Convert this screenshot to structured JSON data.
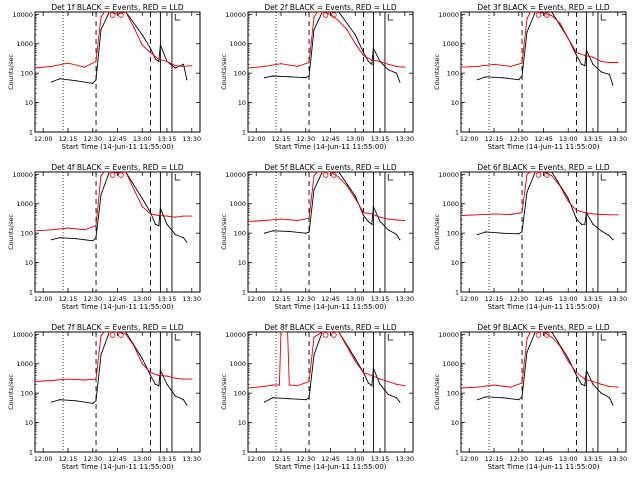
{
  "window": {
    "title": ""
  },
  "colors": {
    "events": "#000000",
    "lld": "#e00000",
    "axes": "#000000",
    "background": "#ffffff"
  },
  "common": {
    "xlabel": "Start Time (14-Jun-11 11:55:00)",
    "ylabel": "Counts/sec",
    "xticks": [
      "12:00",
      "12:15",
      "12:30",
      "12:45",
      "13:00",
      "13:15",
      "13:30"
    ],
    "yticks": [
      "1",
      "10",
      "100",
      "1000",
      "10000"
    ]
  },
  "chart_data": [
    {
      "type": "line",
      "title": "Det 1f BLACK = Events, RED = LLD",
      "xlim": [
        "11:55",
        "13:35"
      ],
      "ylim": [
        1,
        12000
      ],
      "yscale": "log",
      "vlines_dotted": [
        "12:12"
      ],
      "vlines_dashed": [
        "12:32",
        "13:05"
      ],
      "vlines_solid": [
        "13:11",
        "13:18"
      ],
      "series": [
        {
          "name": "Events",
          "color": "#000000",
          "x": [
            "12:05",
            "12:10",
            "12:20",
            "12:30",
            "12:32",
            "12:35",
            "12:40",
            "12:50",
            "13:00",
            "13:05",
            "13:08",
            "13:10",
            "13:11",
            "13:15",
            "13:20",
            "13:25",
            "13:27"
          ],
          "y": [
            50,
            65,
            55,
            45,
            60,
            3000,
            12000,
            12000,
            2000,
            700,
            300,
            250,
            900,
            250,
            150,
            200,
            60
          ]
        },
        {
          "name": "LLD",
          "color": "#e00000",
          "x": [
            "11:55",
            "12:05",
            "12:15",
            "12:25",
            "12:32",
            "12:35",
            "12:37",
            "12:40",
            "12:45",
            "12:50",
            "12:55",
            "13:00",
            "13:05",
            "13:10",
            "13:15",
            "13:20",
            "13:25",
            "13:30"
          ],
          "y": [
            150,
            170,
            220,
            160,
            250,
            8000,
            12000,
            12000,
            10000,
            12000,
            3500,
            900,
            500,
            300,
            250,
            180,
            170,
            180
          ]
        }
      ]
    },
    {
      "type": "line",
      "title": "Det 2f BLACK = Events, RED = LLD",
      "xlim": [
        "11:55",
        "13:35"
      ],
      "ylim": [
        1,
        12000
      ],
      "yscale": "log",
      "vlines_dotted": [
        "12:12"
      ],
      "vlines_dashed": [
        "12:32",
        "13:05"
      ],
      "vlines_solid": [
        "13:11",
        "13:18"
      ],
      "series": [
        {
          "name": "Events",
          "color": "#000000",
          "x": [
            "12:05",
            "12:10",
            "12:20",
            "12:30",
            "12:32",
            "12:35",
            "12:40",
            "12:50",
            "13:00",
            "13:05",
            "13:08",
            "13:10",
            "13:11",
            "13:15",
            "13:20",
            "13:25",
            "13:27"
          ],
          "y": [
            70,
            80,
            75,
            70,
            80,
            3000,
            12000,
            12000,
            2000,
            500,
            250,
            200,
            700,
            250,
            130,
            100,
            50
          ]
        },
        {
          "name": "LLD",
          "color": "#e00000",
          "x": [
            "11:55",
            "12:05",
            "12:15",
            "12:25",
            "12:32",
            "12:35",
            "12:37",
            "12:40",
            "12:45",
            "12:50",
            "12:55",
            "13:00",
            "13:05",
            "13:10",
            "13:15",
            "13:20",
            "13:25",
            "13:30"
          ],
          "y": [
            150,
            170,
            210,
            170,
            230,
            8000,
            12000,
            12000,
            10000,
            6000,
            3000,
            1000,
            400,
            280,
            250,
            200,
            170,
            160
          ]
        }
      ]
    },
    {
      "type": "line",
      "title": "Det 3f BLACK = Events, RED = LLD",
      "xlim": [
        "11:55",
        "13:35"
      ],
      "ylim": [
        1,
        12000
      ],
      "yscale": "log",
      "vlines_dotted": [
        "12:12"
      ],
      "vlines_dashed": [
        "12:32",
        "13:05"
      ],
      "vlines_solid": [
        "13:11",
        "13:18"
      ],
      "series": [
        {
          "name": "Events",
          "color": "#000000",
          "x": [
            "12:05",
            "12:10",
            "12:20",
            "12:30",
            "12:32",
            "12:35",
            "12:40",
            "12:50",
            "13:00",
            "13:05",
            "13:08",
            "13:10",
            "13:11",
            "13:15",
            "13:20",
            "13:25",
            "13:27"
          ],
          "y": [
            60,
            75,
            70,
            60,
            80,
            2500,
            12000,
            12000,
            1500,
            400,
            200,
            180,
            600,
            200,
            110,
            90,
            40
          ]
        },
        {
          "name": "LLD",
          "color": "#e00000",
          "x": [
            "11:55",
            "12:05",
            "12:15",
            "12:25",
            "12:32",
            "12:35",
            "12:37",
            "12:40",
            "12:45",
            "12:50",
            "12:55",
            "13:00",
            "13:05",
            "13:10",
            "13:15",
            "13:20",
            "13:25",
            "13:30"
          ],
          "y": [
            160,
            170,
            200,
            170,
            220,
            7000,
            12000,
            12000,
            11000,
            9000,
            5000,
            1500,
            500,
            400,
            350,
            250,
            230,
            230
          ]
        }
      ]
    },
    {
      "type": "line",
      "title": "Det 4f BLACK = Events, RED = LLD",
      "xlim": [
        "11:55",
        "13:35"
      ],
      "ylim": [
        1,
        12000
      ],
      "yscale": "log",
      "vlines_dotted": [
        "12:12"
      ],
      "vlines_dashed": [
        "12:32",
        "13:05"
      ],
      "vlines_solid": [
        "13:11",
        "13:18"
      ],
      "series": [
        {
          "name": "Events",
          "color": "#000000",
          "x": [
            "12:05",
            "12:10",
            "12:20",
            "12:30",
            "12:32",
            "12:35",
            "12:40",
            "12:50",
            "13:00",
            "13:05",
            "13:08",
            "13:10",
            "13:11",
            "13:15",
            "13:20",
            "13:25",
            "13:27"
          ],
          "y": [
            60,
            70,
            65,
            55,
            70,
            2000,
            12000,
            12000,
            1500,
            500,
            200,
            180,
            700,
            200,
            90,
            70,
            50
          ]
        },
        {
          "name": "LLD",
          "color": "#e00000",
          "x": [
            "11:55",
            "12:05",
            "12:15",
            "12:25",
            "12:32",
            "12:35",
            "12:37",
            "12:40",
            "12:45",
            "12:50",
            "12:55",
            "13:00",
            "13:05",
            "13:10",
            "13:15",
            "13:20",
            "13:25",
            "13:30"
          ],
          "y": [
            120,
            130,
            150,
            130,
            180,
            9000,
            12000,
            12000,
            11000,
            12000,
            3000,
            800,
            450,
            400,
            380,
            350,
            380,
            380
          ]
        }
      ]
    },
    {
      "type": "line",
      "title": "Det 5f BLACK = Events, RED = LLD",
      "xlim": [
        "11:55",
        "13:35"
      ],
      "ylim": [
        1,
        12000
      ],
      "yscale": "log",
      "vlines_dotted": [
        "12:12"
      ],
      "vlines_dashed": [
        "12:32",
        "13:05"
      ],
      "vlines_solid": [
        "13:11",
        "13:18"
      ],
      "series": [
        {
          "name": "Events",
          "color": "#000000",
          "x": [
            "12:05",
            "12:10",
            "12:20",
            "12:30",
            "12:32",
            "12:35",
            "12:40",
            "12:50",
            "13:00",
            "13:05",
            "13:08",
            "13:10",
            "13:11",
            "13:15",
            "13:20",
            "13:25",
            "13:27"
          ],
          "y": [
            100,
            120,
            115,
            100,
            110,
            3000,
            12000,
            12000,
            1800,
            400,
            250,
            200,
            800,
            250,
            130,
            90,
            60
          ]
        },
        {
          "name": "LLD",
          "color": "#e00000",
          "x": [
            "11:55",
            "12:05",
            "12:15",
            "12:25",
            "12:32",
            "12:35",
            "12:37",
            "12:40",
            "12:45",
            "12:50",
            "12:55",
            "13:00",
            "13:05",
            "13:10",
            "13:15",
            "13:20",
            "13:25",
            "13:30"
          ],
          "y": [
            250,
            270,
            300,
            270,
            320,
            9000,
            12000,
            12000,
            12000,
            8000,
            4000,
            1500,
            500,
            450,
            350,
            300,
            280,
            270
          ]
        }
      ]
    },
    {
      "type": "line",
      "title": "Det 6f BLACK = Events, RED = LLD",
      "xlim": [
        "11:55",
        "13:35"
      ],
      "ylim": [
        1,
        12000
      ],
      "yscale": "log",
      "vlines_dotted": [
        "12:12"
      ],
      "vlines_dashed": [
        "12:32",
        "13:05"
      ],
      "vlines_solid": [
        "13:11",
        "13:18"
      ],
      "series": [
        {
          "name": "Events",
          "color": "#000000",
          "x": [
            "12:05",
            "12:10",
            "12:20",
            "12:30",
            "12:32",
            "12:35",
            "12:40",
            "12:50",
            "13:00",
            "13:05",
            "13:08",
            "13:10",
            "13:11",
            "13:15",
            "13:20",
            "13:25",
            "13:27"
          ],
          "y": [
            90,
            110,
            100,
            95,
            110,
            2500,
            12000,
            12000,
            1500,
            300,
            200,
            200,
            500,
            200,
            120,
            80,
            60
          ]
        },
        {
          "name": "LLD",
          "color": "#e00000",
          "x": [
            "11:55",
            "12:05",
            "12:15",
            "12:25",
            "12:32",
            "12:35",
            "12:37",
            "12:40",
            "12:45",
            "12:50",
            "12:55",
            "13:00",
            "13:05",
            "13:10",
            "13:15",
            "13:20",
            "13:25",
            "13:30"
          ],
          "y": [
            400,
            420,
            450,
            430,
            500,
            10000,
            12000,
            12000,
            12000,
            9000,
            4000,
            1200,
            600,
            500,
            450,
            430,
            420,
            420
          ]
        }
      ]
    },
    {
      "type": "line",
      "title": "Det 7f BLACK = Events, RED = LLD",
      "xlim": [
        "11:55",
        "13:35"
      ],
      "ylim": [
        1,
        12000
      ],
      "yscale": "log",
      "vlines_dotted": [
        "12:12"
      ],
      "vlines_dashed": [
        "12:32",
        "13:05"
      ],
      "vlines_solid": [
        "13:11",
        "13:18"
      ],
      "series": [
        {
          "name": "Events",
          "color": "#000000",
          "x": [
            "12:05",
            "12:10",
            "12:20",
            "12:30",
            "12:32",
            "12:35",
            "12:40",
            "12:50",
            "13:00",
            "13:05",
            "13:08",
            "13:10",
            "13:11",
            "13:15",
            "13:20",
            "13:25",
            "13:27"
          ],
          "y": [
            50,
            60,
            55,
            45,
            55,
            2000,
            12000,
            12000,
            1500,
            400,
            200,
            180,
            600,
            200,
            80,
            60,
            40
          ]
        },
        {
          "name": "LLD",
          "color": "#e00000",
          "x": [
            "11:55",
            "12:05",
            "12:15",
            "12:25",
            "12:32",
            "12:35",
            "12:37",
            "12:40",
            "12:45",
            "12:50",
            "12:55",
            "13:00",
            "13:05",
            "13:10",
            "13:15",
            "13:20",
            "13:25",
            "13:30"
          ],
          "y": [
            250,
            270,
            300,
            280,
            300,
            9000,
            12000,
            12000,
            12000,
            10000,
            4000,
            1000,
            500,
            400,
            380,
            320,
            300,
            300
          ]
        }
      ]
    },
    {
      "type": "line",
      "title": "Det 8f BLACK = Events, RED = LLD",
      "xlim": [
        "11:55",
        "13:35"
      ],
      "ylim": [
        1,
        12000
      ],
      "yscale": "log",
      "vlines_dotted": [
        "12:12"
      ],
      "vlines_dashed": [
        "12:32",
        "13:05"
      ],
      "vlines_solid": [
        "13:11",
        "13:18"
      ],
      "series": [
        {
          "name": "Events",
          "color": "#000000",
          "x": [
            "12:05",
            "12:10",
            "12:20",
            "12:30",
            "12:32",
            "12:35",
            "12:40",
            "12:50",
            "13:00",
            "13:05",
            "13:08",
            "13:10",
            "13:11",
            "13:15",
            "13:20",
            "13:25",
            "13:27"
          ],
          "y": [
            50,
            70,
            65,
            60,
            70,
            2000,
            12000,
            12000,
            1500,
            500,
            220,
            180,
            700,
            200,
            90,
            70,
            50
          ]
        },
        {
          "name": "LLD",
          "color": "#e00000",
          "x": [
            "11:55",
            "12:05",
            "12:10",
            "12:14",
            "12:15",
            "12:19",
            "12:20",
            "12:25",
            "12:32",
            "12:35",
            "12:40",
            "12:50",
            "13:00",
            "13:05",
            "13:10",
            "13:15",
            "13:20",
            "13:25",
            "13:30"
          ],
          "y": [
            150,
            170,
            190,
            190,
            12000,
            12000,
            190,
            180,
            250,
            8000,
            12000,
            12000,
            1200,
            500,
            400,
            300,
            250,
            200,
            180
          ]
        }
      ]
    },
    {
      "type": "line",
      "title": "Det 9f BLACK = Events, RED = LLD",
      "xlim": [
        "11:55",
        "13:35"
      ],
      "ylim": [
        1,
        12000
      ],
      "yscale": "log",
      "vlines_dotted": [
        "12:12"
      ],
      "vlines_dashed": [
        "12:32",
        "13:05"
      ],
      "vlines_solid": [
        "13:11",
        "13:18"
      ],
      "series": [
        {
          "name": "Events",
          "color": "#000000",
          "x": [
            "12:05",
            "12:10",
            "12:20",
            "12:30",
            "12:32",
            "12:35",
            "12:40",
            "12:50",
            "13:00",
            "13:05",
            "13:08",
            "13:10",
            "13:11",
            "13:15",
            "13:20",
            "13:25",
            "13:27"
          ],
          "y": [
            60,
            75,
            70,
            60,
            75,
            2500,
            12000,
            12000,
            1500,
            400,
            200,
            180,
            600,
            200,
            100,
            70,
            40
          ]
        },
        {
          "name": "LLD",
          "color": "#e00000",
          "x": [
            "11:55",
            "12:05",
            "12:15",
            "12:25",
            "12:32",
            "12:35",
            "12:37",
            "12:40",
            "12:45",
            "12:50",
            "12:55",
            "13:00",
            "13:05",
            "13:10",
            "13:15",
            "13:20",
            "13:25",
            "13:30"
          ],
          "y": [
            150,
            160,
            190,
            160,
            220,
            7000,
            12000,
            12000,
            12000,
            8000,
            4000,
            1200,
            500,
            300,
            250,
            200,
            170,
            160
          ]
        }
      ]
    }
  ]
}
